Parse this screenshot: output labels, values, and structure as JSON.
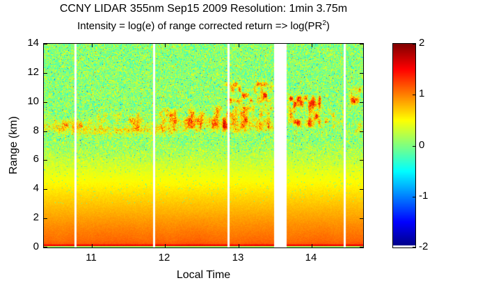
{
  "chart_data": {
    "type": "heatmap",
    "title": "CCNY LIDAR 355nm Sep15 2009 Resolution: 1min 3.75m",
    "subtitle_parts": {
      "prefix": "Intensity = log(e) of range corrected return => log(PR",
      "sup": "2",
      "suffix": ")"
    },
    "xlabel": "Local Time",
    "ylabel": "Range (km)",
    "x_range": [
      10.35,
      14.7
    ],
    "y_range": [
      0,
      14
    ],
    "x_ticks": [
      11,
      12,
      13,
      14
    ],
    "y_ticks": [
      0,
      2,
      4,
      6,
      8,
      10,
      12,
      14
    ],
    "colorbar": {
      "min": -2,
      "max": 2,
      "ticks": [
        2,
        1,
        0,
        -1,
        -2
      ],
      "colormap": "jet",
      "under_color": "#ffffff"
    },
    "gaps": [
      [
        10.765,
        10.795
      ],
      [
        11.835,
        11.865
      ],
      [
        12.855,
        12.885
      ],
      [
        13.49,
        13.66
      ],
      [
        14.435,
        14.465
      ]
    ],
    "background_profile": [
      [
        0,
        0.05
      ],
      [
        0.07,
        0.05
      ],
      [
        0.09,
        1.55
      ],
      [
        0.19,
        1.55
      ],
      [
        0.23,
        1.15
      ],
      [
        0.5,
        1.08
      ],
      [
        1.5,
        0.95
      ],
      [
        2.5,
        0.8
      ],
      [
        3.5,
        0.65
      ],
      [
        4.5,
        0.5
      ],
      [
        5.5,
        0.35
      ],
      [
        6.5,
        0.18
      ],
      [
        7.4,
        0.07
      ],
      [
        14,
        0.04
      ]
    ],
    "noise": {
      "base_amp": 0.05,
      "high_amp": 0.45,
      "ramp_lo": 4.5,
      "ramp_hi": 7.5
    },
    "aerosol_layer": {
      "center": 8.3,
      "amp": 0.85,
      "t_end": 13.48
    },
    "cloud_patches": [
      {
        "t0": 10.4,
        "t1": 11.05,
        "r0": 7.9,
        "r1": 8.9,
        "amp": 0.9
      },
      {
        "t0": 11.05,
        "t1": 11.8,
        "r0": 8.0,
        "r1": 9.4,
        "amp": 1.0
      },
      {
        "t0": 11.9,
        "t1": 12.55,
        "r0": 8.0,
        "r1": 9.7,
        "amp": 1.1
      },
      {
        "t0": 12.55,
        "t1": 13.48,
        "r0": 8.0,
        "r1": 9.9,
        "amp": 1.2
      },
      {
        "t0": 12.8,
        "t1": 13.48,
        "r0": 9.9,
        "r1": 11.5,
        "amp": 1.7
      },
      {
        "t0": 13.66,
        "t1": 14.15,
        "r0": 8.3,
        "r1": 10.6,
        "amp": 1.8
      },
      {
        "t0": 14.15,
        "t1": 14.5,
        "r0": 8.2,
        "r1": 9.6,
        "amp": 1.0
      },
      {
        "t0": 14.5,
        "t1": 14.7,
        "r0": 9.8,
        "r1": 11.2,
        "amp": 1.7
      },
      {
        "t0": 14.55,
        "t1": 14.7,
        "r0": 7.9,
        "r1": 8.8,
        "amp": 1.1
      }
    ]
  }
}
